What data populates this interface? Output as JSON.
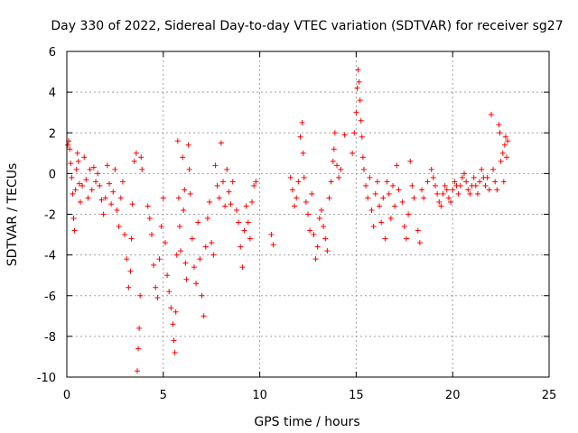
{
  "chart_data": {
    "type": "scatter",
    "title": "Day 330 of 2022, Sidereal Day-to-day VTEC variation (SDTVAR) for receiver sg27",
    "xlabel": "GPS time / hours",
    "ylabel": "SDTVAR / TECUs",
    "xlim": [
      0,
      25
    ],
    "ylim": [
      -10,
      6
    ],
    "xticks": [
      0,
      5,
      10,
      15,
      20,
      25
    ],
    "yticks": [
      -10,
      -8,
      -6,
      -4,
      -2,
      0,
      2,
      4,
      6
    ],
    "grid": true,
    "marker": "+",
    "color": "#ff0000",
    "series": [
      {
        "name": "SDTVAR",
        "points": [
          [
            0.05,
            1.4
          ],
          [
            0.1,
            1.6
          ],
          [
            0.15,
            1.2
          ],
          [
            0.2,
            0.5
          ],
          [
            0.25,
            -0.2
          ],
          [
            0.3,
            -1.0
          ],
          [
            0.35,
            -2.2
          ],
          [
            0.4,
            -2.8
          ],
          [
            0.45,
            -0.8
          ],
          [
            0.5,
            0.2
          ],
          [
            0.55,
            1.0
          ],
          [
            0.6,
            0.6
          ],
          [
            0.65,
            -0.5
          ],
          [
            0.7,
            -1.4
          ],
          [
            0.8,
            -0.6
          ],
          [
            0.9,
            0.8
          ],
          [
            1.0,
            -0.3
          ],
          [
            1.1,
            -1.2
          ],
          [
            1.2,
            0.2
          ],
          [
            1.3,
            -0.8
          ],
          [
            1.4,
            0.3
          ],
          [
            1.5,
            -0.4
          ],
          [
            1.6,
            0.0
          ],
          [
            1.7,
            -0.6
          ],
          [
            1.8,
            -1.3
          ],
          [
            1.9,
            -2.0
          ],
          [
            2.0,
            -1.2
          ],
          [
            2.1,
            0.4
          ],
          [
            2.2,
            -0.5
          ],
          [
            2.3,
            -1.5
          ],
          [
            2.4,
            -0.9
          ],
          [
            2.5,
            0.2
          ],
          [
            2.6,
            -1.8
          ],
          [
            2.7,
            -2.6
          ],
          [
            2.8,
            -1.2
          ],
          [
            2.9,
            -0.4
          ],
          [
            3.0,
            -3.0
          ],
          [
            3.1,
            -4.2
          ],
          [
            3.2,
            -5.6
          ],
          [
            3.3,
            -4.8
          ],
          [
            3.35,
            -3.2
          ],
          [
            3.4,
            -1.5
          ],
          [
            3.5,
            0.6
          ],
          [
            3.6,
            1.0
          ],
          [
            3.65,
            -9.7
          ],
          [
            3.7,
            -8.6
          ],
          [
            3.75,
            -7.6
          ],
          [
            3.8,
            -6.0
          ],
          [
            3.85,
            0.8
          ],
          [
            3.9,
            0.2
          ],
          [
            4.2,
            -1.6
          ],
          [
            4.3,
            -2.2
          ],
          [
            4.4,
            -3.0
          ],
          [
            4.5,
            -4.5
          ],
          [
            4.6,
            -5.6
          ],
          [
            4.7,
            -6.1
          ],
          [
            4.8,
            -4.2
          ],
          [
            4.9,
            -2.6
          ],
          [
            5.0,
            -1.2
          ],
          [
            5.1,
            -3.4
          ],
          [
            5.2,
            -5.0
          ],
          [
            5.3,
            -5.8
          ],
          [
            5.4,
            -6.6
          ],
          [
            5.5,
            -7.4
          ],
          [
            5.55,
            -8.2
          ],
          [
            5.6,
            -8.8
          ],
          [
            5.65,
            -6.8
          ],
          [
            5.7,
            -4.0
          ],
          [
            5.75,
            1.6
          ],
          [
            5.8,
            -1.2
          ],
          [
            5.85,
            -2.6
          ],
          [
            5.9,
            -3.8
          ],
          [
            6.0,
            0.8
          ],
          [
            6.05,
            -1.8
          ],
          [
            6.1,
            -0.8
          ],
          [
            6.15,
            -4.4
          ],
          [
            6.2,
            -5.2
          ],
          [
            6.3,
            1.4
          ],
          [
            6.35,
            0.2
          ],
          [
            6.4,
            -1.0
          ],
          [
            6.5,
            -3.2
          ],
          [
            6.6,
            -4.6
          ],
          [
            6.7,
            -5.4
          ],
          [
            6.8,
            -2.4
          ],
          [
            6.9,
            -4.2
          ],
          [
            7.0,
            -6.0
          ],
          [
            7.1,
            -7.0
          ],
          [
            7.2,
            -3.6
          ],
          [
            7.3,
            -2.2
          ],
          [
            7.4,
            -1.4
          ],
          [
            7.5,
            -3.4
          ],
          [
            7.6,
            -4.0
          ],
          [
            7.7,
            0.4
          ],
          [
            7.8,
            -0.6
          ],
          [
            7.9,
            -1.2
          ],
          [
            8.0,
            1.5
          ],
          [
            8.1,
            -0.4
          ],
          [
            8.2,
            -1.6
          ],
          [
            8.3,
            0.2
          ],
          [
            8.4,
            -0.9
          ],
          [
            8.5,
            -1.5
          ],
          [
            8.6,
            -0.4
          ],
          [
            8.8,
            -1.8
          ],
          [
            8.9,
            -2.4
          ],
          [
            9.0,
            -3.6
          ],
          [
            9.1,
            -4.6
          ],
          [
            9.2,
            -2.8
          ],
          [
            9.3,
            -1.6
          ],
          [
            9.4,
            -2.4
          ],
          [
            9.5,
            -3.2
          ],
          [
            9.6,
            -1.4
          ],
          [
            9.7,
            -0.6
          ],
          [
            9.8,
            -0.4
          ],
          [
            10.6,
            -3.0
          ],
          [
            10.7,
            -3.5
          ],
          [
            11.6,
            -0.2
          ],
          [
            11.7,
            -0.8
          ],
          [
            11.8,
            -1.6
          ],
          [
            11.9,
            -1.2
          ],
          [
            12.0,
            -0.4
          ],
          [
            12.1,
            1.8
          ],
          [
            12.2,
            2.5
          ],
          [
            12.25,
            1.0
          ],
          [
            12.3,
            -0.2
          ],
          [
            12.4,
            -1.4
          ],
          [
            12.5,
            -2.0
          ],
          [
            12.6,
            -2.8
          ],
          [
            12.7,
            -1.0
          ],
          [
            12.8,
            -3.0
          ],
          [
            12.9,
            -4.2
          ],
          [
            13.0,
            -3.6
          ],
          [
            13.1,
            -2.2
          ],
          [
            13.2,
            -1.8
          ],
          [
            13.3,
            -2.6
          ],
          [
            13.4,
            -3.2
          ],
          [
            13.5,
            -3.8
          ],
          [
            13.6,
            -1.2
          ],
          [
            13.7,
            -0.4
          ],
          [
            13.8,
            0.6
          ],
          [
            13.85,
            1.2
          ],
          [
            13.9,
            2.0
          ],
          [
            14.0,
            0.4
          ],
          [
            14.1,
            -0.2
          ],
          [
            14.2,
            0.2
          ],
          [
            14.4,
            1.9
          ],
          [
            14.8,
            1.0
          ],
          [
            14.9,
            2.0
          ],
          [
            15.0,
            3.0
          ],
          [
            15.05,
            4.2
          ],
          [
            15.1,
            5.1
          ],
          [
            15.15,
            4.5
          ],
          [
            15.2,
            3.6
          ],
          [
            15.25,
            2.6
          ],
          [
            15.3,
            1.8
          ],
          [
            15.35,
            0.8
          ],
          [
            15.4,
            0.2
          ],
          [
            15.5,
            -0.6
          ],
          [
            15.6,
            -1.2
          ],
          [
            15.7,
            -0.2
          ],
          [
            15.8,
            -1.8
          ],
          [
            15.9,
            -2.6
          ],
          [
            16.0,
            -1.0
          ],
          [
            16.1,
            -0.4
          ],
          [
            16.2,
            -1.6
          ],
          [
            16.3,
            -2.4
          ],
          [
            16.4,
            -1.2
          ],
          [
            16.5,
            -3.2
          ],
          [
            16.6,
            -0.4
          ],
          [
            16.7,
            -1.0
          ],
          [
            16.8,
            -2.2
          ],
          [
            16.9,
            -0.6
          ],
          [
            17.0,
            -1.6
          ],
          [
            17.1,
            0.4
          ],
          [
            17.2,
            -0.8
          ],
          [
            17.4,
            -1.4
          ],
          [
            17.5,
            -2.6
          ],
          [
            17.6,
            -3.2
          ],
          [
            17.7,
            -2.0
          ],
          [
            17.8,
            0.6
          ],
          [
            17.9,
            -0.6
          ],
          [
            18.0,
            -1.2
          ],
          [
            18.2,
            -2.8
          ],
          [
            18.3,
            -3.4
          ],
          [
            18.4,
            -0.8
          ],
          [
            18.5,
            -1.2
          ],
          [
            18.7,
            -0.4
          ],
          [
            18.9,
            0.2
          ],
          [
            19.0,
            -0.2
          ],
          [
            19.1,
            -0.6
          ],
          [
            19.2,
            -1.0
          ],
          [
            19.3,
            -1.4
          ],
          [
            19.4,
            -1.6
          ],
          [
            19.5,
            -1.0
          ],
          [
            19.6,
            -0.6
          ],
          [
            19.7,
            -0.8
          ],
          [
            19.8,
            -1.2
          ],
          [
            19.9,
            -1.4
          ],
          [
            20.0,
            -0.8
          ],
          [
            20.1,
            -0.4
          ],
          [
            20.2,
            -0.6
          ],
          [
            20.3,
            -1.0
          ],
          [
            20.4,
            -0.6
          ],
          [
            20.5,
            -0.2
          ],
          [
            20.6,
            0.0
          ],
          [
            20.7,
            -0.4
          ],
          [
            20.8,
            -0.8
          ],
          [
            20.9,
            -1.0
          ],
          [
            21.0,
            -0.6
          ],
          [
            21.1,
            -0.2
          ],
          [
            21.2,
            -0.6
          ],
          [
            21.3,
            -1.0
          ],
          [
            21.4,
            -0.4
          ],
          [
            21.5,
            0.2
          ],
          [
            21.6,
            -0.2
          ],
          [
            21.7,
            -0.6
          ],
          [
            21.8,
            -0.2
          ],
          [
            21.9,
            -0.8
          ],
          [
            22.0,
            2.9
          ],
          [
            22.1,
            0.2
          ],
          [
            22.2,
            -0.4
          ],
          [
            22.3,
            -0.8
          ],
          [
            22.4,
            2.4
          ],
          [
            22.45,
            2.0
          ],
          [
            22.5,
            0.6
          ],
          [
            22.6,
            1.0
          ],
          [
            22.65,
            -0.4
          ],
          [
            22.7,
            1.4
          ],
          [
            22.75,
            1.8
          ],
          [
            22.8,
            0.8
          ],
          [
            22.85,
            1.6
          ]
        ]
      }
    ]
  }
}
